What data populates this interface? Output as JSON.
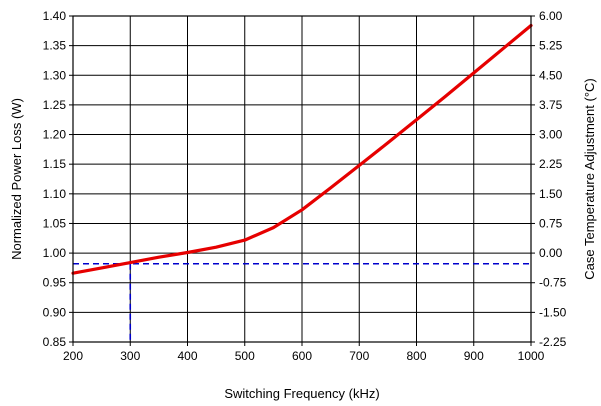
{
  "chart_data": {
    "type": "line",
    "title": "",
    "xlabel": "Switching Frequency (kHz)",
    "ylabel": "Normalized Power Loss (W)",
    "y2label": "Case Temperature Adjustment (°C)",
    "xlim": [
      200,
      1000
    ],
    "ylim": [
      0.85,
      1.4
    ],
    "y2lim": [
      -2.25,
      6.0
    ],
    "x_ticks": [
      "200",
      "300",
      "400",
      "500",
      "600",
      "700",
      "800",
      "900",
      "1000"
    ],
    "x_tick_values": [
      200,
      300,
      400,
      500,
      600,
      700,
      800,
      900,
      1000
    ],
    "y_ticks": [
      "0.85",
      "0.90",
      "0.95",
      "1.00",
      "1.05",
      "1.10",
      "1.15",
      "1.20",
      "1.25",
      "1.30",
      "1.35",
      "1.40"
    ],
    "y_tick_values": [
      0.85,
      0.9,
      0.95,
      1.0,
      1.05,
      1.1,
      1.15,
      1.2,
      1.25,
      1.3,
      1.35,
      1.4
    ],
    "y2_ticks": [
      "-2.25",
      "-1.50",
      "-0.75",
      "0.00",
      "0.75",
      "1.50",
      "2.25",
      "3.00",
      "3.75",
      "4.50",
      "5.25",
      "6.00"
    ],
    "grid": true,
    "legend": "none",
    "series": [
      {
        "color": "#e60000",
        "x": [
          200,
          250,
          300,
          350,
          400,
          450,
          500,
          550,
          600,
          650,
          700,
          750,
          800,
          850,
          900,
          950,
          1000
        ],
        "y": [
          0.966,
          0.975,
          0.984,
          0.993,
          1.001,
          1.01,
          1.022,
          1.043,
          1.073,
          1.11,
          1.148,
          1.186,
          1.225,
          1.264,
          1.304,
          1.344,
          1.384
        ]
      }
    ],
    "reference_lines": [
      {
        "orientation": "horizontal",
        "y": 0.982,
        "color": "#0000cc",
        "style": "dashed"
      },
      {
        "orientation": "vertical",
        "x": 300,
        "color": "#0000cc",
        "style": "dashed"
      }
    ]
  }
}
